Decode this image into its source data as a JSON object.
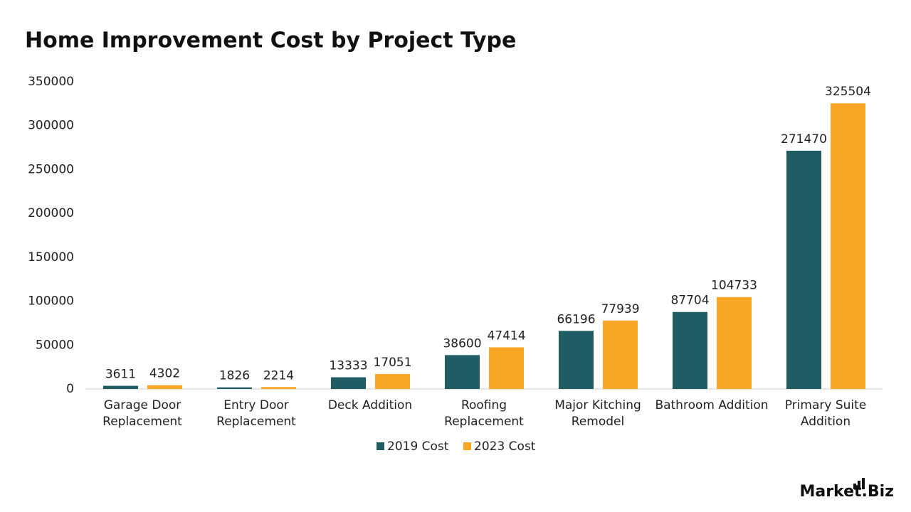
{
  "chart_data": {
    "type": "bar",
    "title": "Home Improvement Cost by Project Type",
    "categories": [
      "Garage Door Replacement",
      "Entry Door Replacement",
      "Deck Addition",
      "Roofing Replacement",
      "Major Kitching Remodel",
      "Bathroom Addition",
      "Primary Suite Addition"
    ],
    "series": [
      {
        "name": "2019 Cost",
        "color": "#1f5c63",
        "values": [
          3611,
          1826,
          13333,
          38600,
          66196,
          87704,
          271470
        ]
      },
      {
        "name": "2023 Cost",
        "color": "#f9a526",
        "values": [
          4302,
          2214,
          17051,
          47414,
          77939,
          104733,
          325504
        ]
      }
    ],
    "ylim": [
      0,
      350000
    ],
    "yticks": [
      0,
      50000,
      100000,
      150000,
      200000,
      250000,
      300000,
      350000
    ],
    "grid": false,
    "legend": "bottom",
    "logo": "Market.Biz"
  }
}
